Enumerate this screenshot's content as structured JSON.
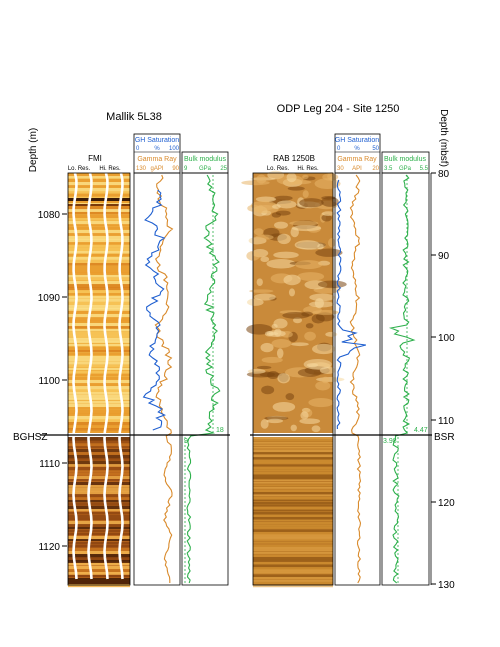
{
  "colors": {
    "gh": "#1f5fd0",
    "gamma": "#d98a2b",
    "bulk": "#2db04b",
    "fmi_dark": "#5a2c0c",
    "fmi_light": "#fff0b8"
  },
  "left": {
    "title": "Mallik 5L38",
    "depth_label": "Depth (m)",
    "depth_ticks": [
      "1080",
      "1090",
      "1100",
      "1110",
      "1120"
    ],
    "boundary_label": "BGHSZ",
    "image_title": "FMI",
    "image_sub1": "Lo. Res.",
    "image_sub2": "Hi. Res.",
    "gh_header": "GH Saturation",
    "gh_scale": [
      "0",
      "%",
      "100"
    ],
    "gamma_header": "Gamma Ray",
    "gamma_scale": [
      "130",
      "gAPI",
      "90"
    ],
    "bulk_header": "Bulk modulus",
    "bulk_scale": [
      "9",
      "GPa",
      "25"
    ],
    "bulk_upper_value": "18",
    "bulk_lower_value": "9"
  },
  "right": {
    "title": "ODP Leg 204 - Site 1250",
    "depth_label": "Depth (mbsf)",
    "depth_ticks": [
      "80",
      "90",
      "100",
      "110",
      "120",
      "130"
    ],
    "boundary_label": "BSR",
    "image_title": "RAB 1250B",
    "image_sub1": "Lo. Res.",
    "image_sub2": "Hi. Res.",
    "gh_header": "GH Saturation",
    "gh_scale": [
      "0",
      "%",
      "50"
    ],
    "gamma_header": "Gamma Ray",
    "gamma_scale": [
      "30",
      "API",
      "20"
    ],
    "bulk_header": "Bulk modulus",
    "bulk_scale": [
      "3.5",
      "GPa",
      "5.5"
    ],
    "bulk_upper_value": "4.47",
    "bulk_lower_value": "3.98"
  }
}
